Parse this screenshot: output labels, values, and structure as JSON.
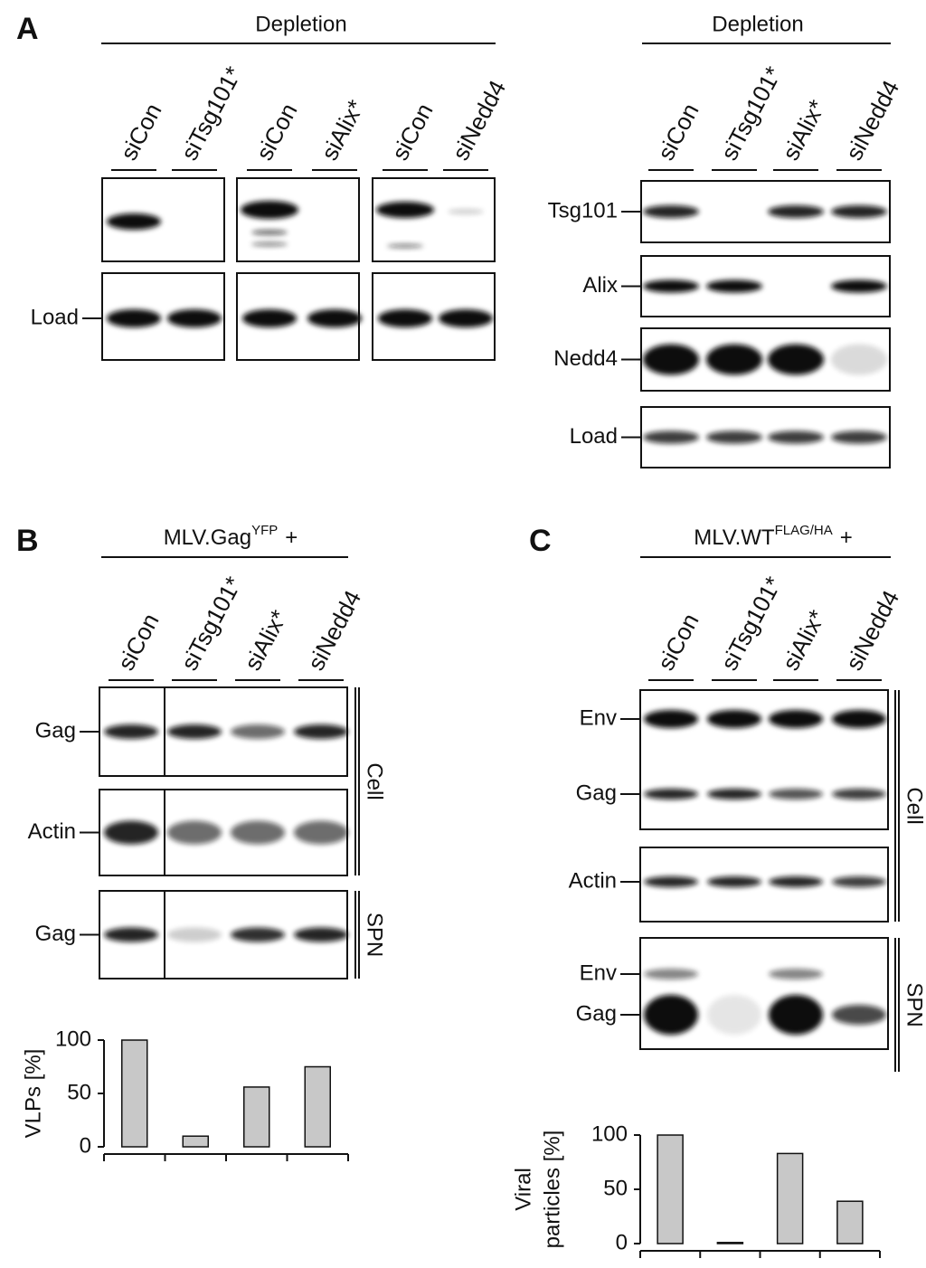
{
  "panel_a": {
    "label": "A",
    "left": {
      "header": "Depletion",
      "lanes": [
        "siCon",
        "siTsg101*",
        "siCon",
        "siAlix*",
        "siCon",
        "siNedd4"
      ],
      "rows": [
        "Load"
      ]
    },
    "right": {
      "header": "Depletion",
      "lanes": [
        "siCon",
        "siTsg101*",
        "siAlix*",
        "siNedd4"
      ],
      "rows": [
        "Tsg101",
        "Alix",
        "Nedd4",
        "Load"
      ]
    }
  },
  "panel_b": {
    "label": "B",
    "header": {
      "text": "MLV.Gag",
      "superscript": "YFP",
      "suffix": "+"
    },
    "lanes": [
      "siCon",
      "siTsg101*",
      "siAlix*",
      "siNedd4"
    ],
    "rows": [
      "Gag",
      "Actin",
      "Gag"
    ],
    "groups": [
      "Cell",
      "SPN"
    ]
  },
  "panel_c": {
    "label": "C",
    "header": {
      "text": "MLV.WT",
      "superscript": "FLAG/HA",
      "suffix": "+"
    },
    "lanes": [
      "siCon",
      "siTsg101*",
      "siAlix*",
      "siNedd4"
    ],
    "rows": [
      "Env",
      "Gag",
      "Actin",
      "Env",
      "Gag"
    ],
    "groups": [
      "Cell",
      "SPN"
    ]
  },
  "chart_data": [
    {
      "type": "bar",
      "ylabel": [
        "VLPs [%]"
      ],
      "categories": [
        null,
        null,
        null,
        null
      ],
      "values": [
        100,
        10,
        56,
        75
      ],
      "color": "#c8c8c8",
      "ylim": [
        0,
        100
      ],
      "yticks": [
        0,
        50,
        100
      ]
    },
    {
      "type": "bar",
      "ylabel": [
        "Viral",
        "particles [%]"
      ],
      "categories": [
        null,
        null,
        null,
        null
      ],
      "values": [
        100,
        1,
        83,
        39
      ],
      "color": "#c8c8c8",
      "ylim": [
        0,
        100
      ],
      "yticks": [
        0,
        50,
        100
      ]
    }
  ]
}
